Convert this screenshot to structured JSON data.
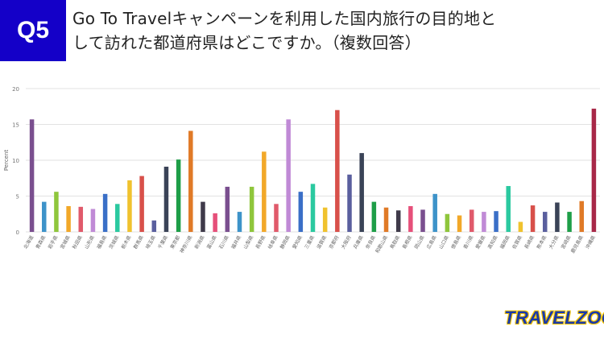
{
  "header": {
    "badge": "Q5",
    "title_line1": "Go To Travelキャンペーンを利用した国内旅行の目的地と",
    "title_line2": "して訪れた都道府県はどこですか。（複数回答）"
  },
  "brand": {
    "name": "TRAVELZOO",
    "mark": "®"
  },
  "chart_data": {
    "type": "bar",
    "ylabel": "Percent",
    "xlabel": "",
    "ylim": [
      0,
      20
    ],
    "yticks": [
      0,
      5,
      10,
      15,
      20
    ],
    "grid": true,
    "categories": [
      "北海道",
      "青森県",
      "岩手県",
      "宮城県",
      "秋田県",
      "山形県",
      "福島県",
      "茨城県",
      "栃木県",
      "群馬県",
      "埼玉県",
      "千葉県",
      "東京都",
      "神奈川県",
      "新潟県",
      "富山県",
      "石川県",
      "福井県",
      "山梨県",
      "長野県",
      "岐阜県",
      "静岡県",
      "愛知県",
      "三重県",
      "滋賀県",
      "京都府",
      "大阪府",
      "兵庫県",
      "奈良県",
      "和歌山県",
      "鳥取県",
      "島根県",
      "岡山県",
      "広島県",
      "山口県",
      "徳島県",
      "香川県",
      "愛媛県",
      "高知県",
      "福岡県",
      "佐賀県",
      "長崎県",
      "熊本県",
      "大分県",
      "宮崎県",
      "鹿児島県",
      "沖縄県"
    ],
    "values": [
      15.7,
      4.2,
      5.6,
      3.6,
      3.5,
      3.2,
      5.3,
      3.9,
      7.2,
      7.8,
      1.6,
      9.1,
      10.1,
      14.1,
      4.2,
      2.6,
      6.3,
      2.8,
      6.3,
      11.2,
      3.9,
      15.7,
      5.6,
      6.7,
      3.4,
      17.0,
      8.0,
      11.0,
      4.2,
      3.4,
      3.0,
      3.6,
      3.1,
      5.3,
      2.5,
      2.3,
      3.1,
      2.8,
      2.9,
      6.4,
      1.4,
      3.7,
      2.8,
      4.1,
      2.8,
      4.3,
      17.2
    ],
    "colors": [
      "#7a4f8f",
      "#3d93c9",
      "#8fc63c",
      "#f2a829",
      "#e05a6b",
      "#c08ad6",
      "#3a6fc7",
      "#2bc9a0",
      "#f0c22e",
      "#d8504a",
      "#5a5f9e",
      "#3a4357",
      "#1e9e48",
      "#e07a27",
      "#3f3a4a",
      "#e6507a",
      "#7a4f8f",
      "#3d93c9",
      "#8fc63c",
      "#f2a829",
      "#e05a6b",
      "#c08ad6",
      "#3a6fc7",
      "#2bc9a0",
      "#f0c22e",
      "#d8504a",
      "#5a5f9e",
      "#3a4357",
      "#1e9e48",
      "#e07a27",
      "#3f3a4a",
      "#e6507a",
      "#7a4f8f",
      "#3d93c9",
      "#8fc63c",
      "#f2a829",
      "#e05a6b",
      "#c08ad6",
      "#3a6fc7",
      "#2bc9a0",
      "#f0c22e",
      "#d8504a",
      "#5a5f9e",
      "#3a4357",
      "#1e9e48",
      "#e07a27",
      "#a82848"
    ]
  }
}
